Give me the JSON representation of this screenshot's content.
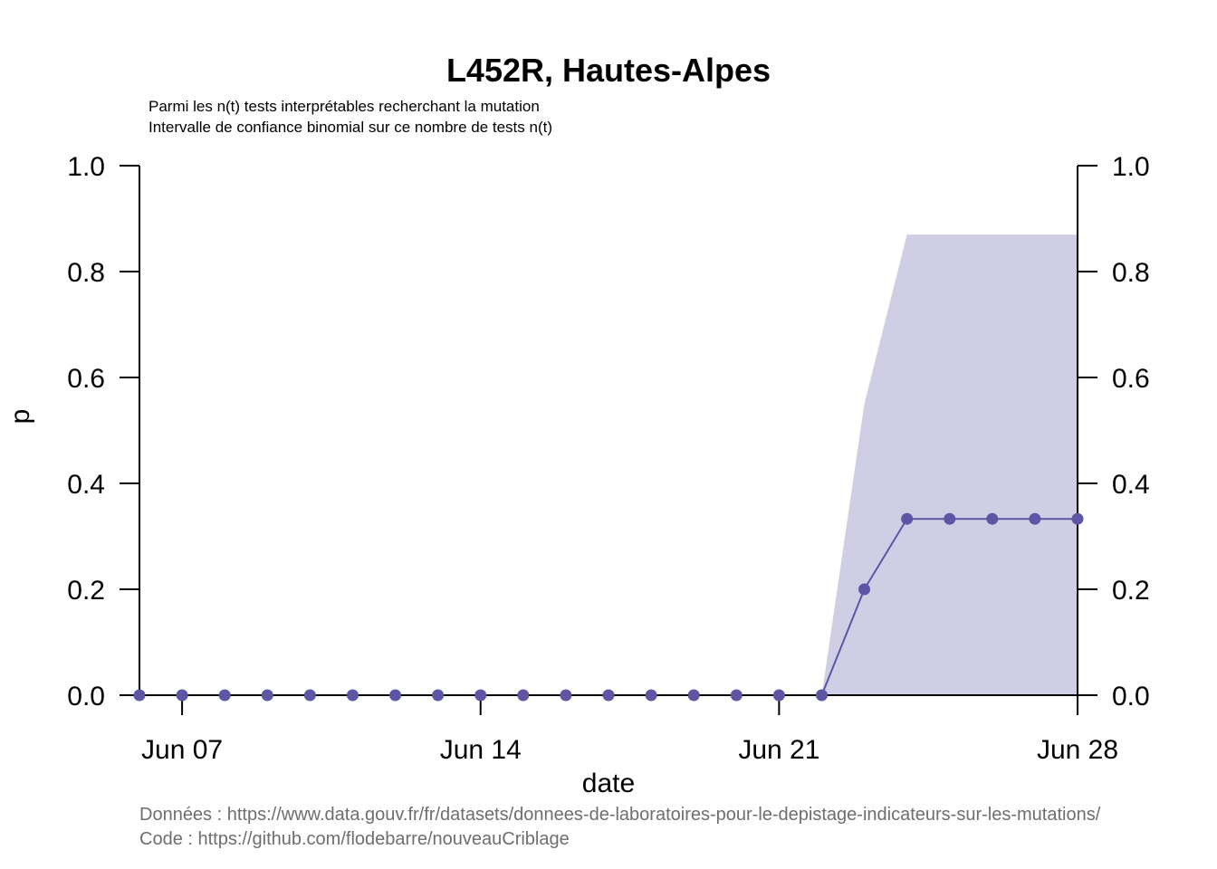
{
  "chart_data": {
    "type": "line",
    "title": "L452R, Hautes-Alpes",
    "subtitle_lines": [
      "Parmi les n(t) tests interprétables recherchant la mutation",
      "Intervalle de confiance binomial sur ce nombre de tests n(t)"
    ],
    "xlabel": "date",
    "ylabel": "p",
    "ylim": [
      0,
      1
    ],
    "y_ticks": [
      "0.0",
      "0.2",
      "0.4",
      "0.6",
      "0.8",
      "1.0"
    ],
    "x_ticks": [
      {
        "date": "2021-06-07",
        "label": "Jun 07"
      },
      {
        "date": "2021-06-14",
        "label": "Jun 14"
      },
      {
        "date": "2021-06-21",
        "label": "Jun 21"
      },
      {
        "date": "2021-06-28",
        "label": "Jun 28"
      }
    ],
    "xlim": [
      "2021-06-06",
      "2021-06-28"
    ],
    "grid": false,
    "color_line": "#5e55a5",
    "color_band": "#d0cee5",
    "series": [
      {
        "x": [
          "2021-06-06",
          "2021-06-07",
          "2021-06-08",
          "2021-06-09",
          "2021-06-10",
          "2021-06-11",
          "2021-06-12",
          "2021-06-13",
          "2021-06-14",
          "2021-06-15",
          "2021-06-16",
          "2021-06-17",
          "2021-06-18",
          "2021-06-19",
          "2021-06-20",
          "2021-06-21",
          "2021-06-22",
          "2021-06-23",
          "2021-06-24",
          "2021-06-25",
          "2021-06-26",
          "2021-06-27",
          "2021-06-28"
        ],
        "values": [
          0,
          0,
          0,
          0,
          0,
          0,
          0,
          0,
          0,
          0,
          0,
          0,
          0,
          0,
          0,
          0,
          0,
          0.2,
          0.333,
          0.333,
          0.333,
          0.333,
          0.333
        ],
        "ci_low": [
          0,
          0,
          0,
          0,
          0,
          0,
          0,
          0,
          0,
          0,
          0,
          0,
          0,
          0,
          0,
          0,
          0,
          0,
          0,
          0,
          0,
          0,
          0
        ],
        "ci_high": [
          0,
          0,
          0,
          0,
          0,
          0,
          0,
          0,
          0,
          0,
          0,
          0,
          0,
          0,
          0,
          0,
          0,
          0.55,
          0.87,
          0.87,
          0.87,
          0.87,
          0.87
        ]
      }
    ]
  },
  "source": {
    "data_line": "Données : https://www.data.gouv.fr/fr/datasets/donnees-de-laboratoires-pour-le-depistage-indicateurs-sur-les-mutations/",
    "code_line": "Code : https://github.com/flodebarre/nouveauCriblage"
  }
}
